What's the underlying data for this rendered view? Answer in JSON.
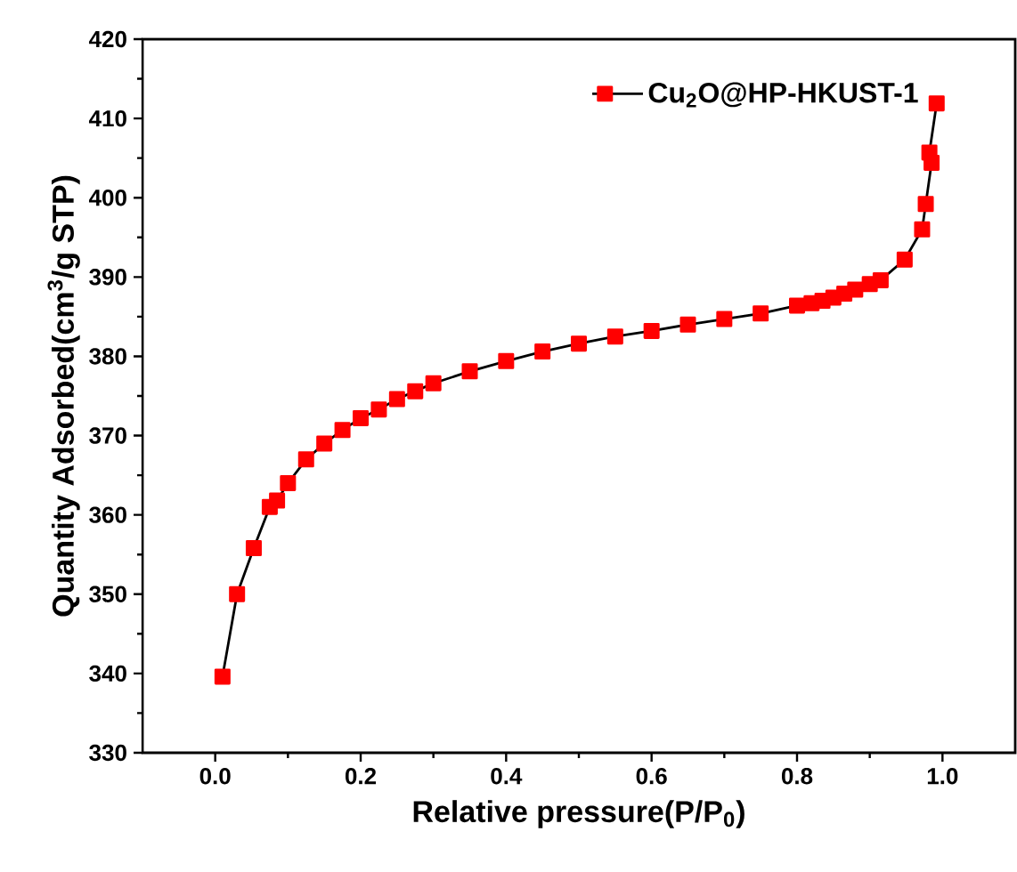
{
  "chart_data": {
    "type": "line",
    "xlabel": "Relative pressure(P/P$_{0}$)",
    "ylabel": "Quantity Adsorbed(cm$^{3}$/g STP)",
    "xlim": [
      -0.1,
      1.1
    ],
    "ylim": [
      330,
      420
    ],
    "xticks": [
      {
        "value": 0,
        "label": "0.0"
      },
      {
        "value": 0.2,
        "label": "0.2"
      },
      {
        "value": 0.4,
        "label": "0.4"
      },
      {
        "value": 0.6,
        "label": "0.6"
      },
      {
        "value": 0.8,
        "label": "0.8"
      },
      {
        "value": 1,
        "label": "1.0"
      }
    ],
    "yticks": [
      330,
      340,
      350,
      360,
      370,
      380,
      390,
      400,
      410,
      420
    ],
    "legend": "top right",
    "marker": "square",
    "line_style": "solid",
    "grid": false,
    "series": [
      {
        "name": "Cu$_{2}$O@HP-HKUST-1",
        "color": "#ff0000",
        "x": [
          0.01,
          0.03,
          0.053,
          0.075,
          0.085,
          0.1,
          0.125,
          0.15,
          0.175,
          0.2,
          0.225,
          0.25,
          0.275,
          0.3,
          0.35,
          0.4,
          0.45,
          0.5,
          0.55,
          0.6,
          0.65,
          0.7,
          0.75,
          0.8,
          0.82,
          0.835,
          0.85,
          0.865,
          0.88,
          0.9,
          0.915,
          0.948,
          0.972,
          0.977,
          0.985,
          0.982,
          0.992
        ],
        "values": [
          339.6,
          350,
          355.8,
          361,
          361.8,
          364,
          367,
          369,
          370.7,
          372.2,
          373.3,
          374.6,
          375.6,
          376.6,
          378.1,
          379.4,
          380.6,
          381.6,
          382.5,
          383.2,
          384,
          384.7,
          385.4,
          386.4,
          386.7,
          387,
          387.4,
          387.9,
          388.4,
          389.1,
          389.6,
          392.2,
          396,
          399.2,
          404.4,
          405.7,
          411.9
        ]
      }
    ]
  }
}
